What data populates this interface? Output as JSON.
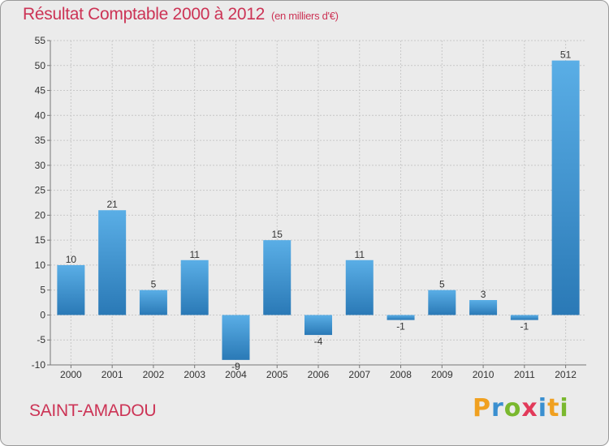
{
  "title": "Résultat Comptable 2000 à 2012",
  "unit": "(en milliers d'€)",
  "commune": "SAINT-AMADOU",
  "logo": {
    "p": "P",
    "r": "r",
    "o": "o",
    "x": "x",
    "i1": "i",
    "t": "t",
    "i2": "i"
  },
  "colors": {
    "bar_light": "#5aaee6",
    "bar_dark": "#2a79b6",
    "title": "#cc3355"
  },
  "chart_data": {
    "type": "bar",
    "title": "Résultat Comptable 2000 à 2012",
    "ylabel": "en milliers d'€",
    "categories": [
      "2000",
      "2001",
      "2002",
      "2003",
      "2004",
      "2005",
      "2006",
      "2007",
      "2008",
      "2009",
      "2010",
      "2011",
      "2012"
    ],
    "values": [
      10,
      21,
      5,
      11,
      -9,
      15,
      -4,
      11,
      -1,
      5,
      3,
      -1,
      51
    ],
    "data_labels": [
      "10",
      "21",
      "5",
      "11",
      "-9",
      "15",
      "-4",
      "11",
      "-1",
      "5",
      "3",
      "-1",
      "51"
    ],
    "ylim": [
      -10,
      55
    ],
    "yticks": [
      -10,
      -5,
      0,
      5,
      10,
      15,
      20,
      25,
      30,
      35,
      40,
      45,
      50,
      55
    ],
    "grid": true
  }
}
